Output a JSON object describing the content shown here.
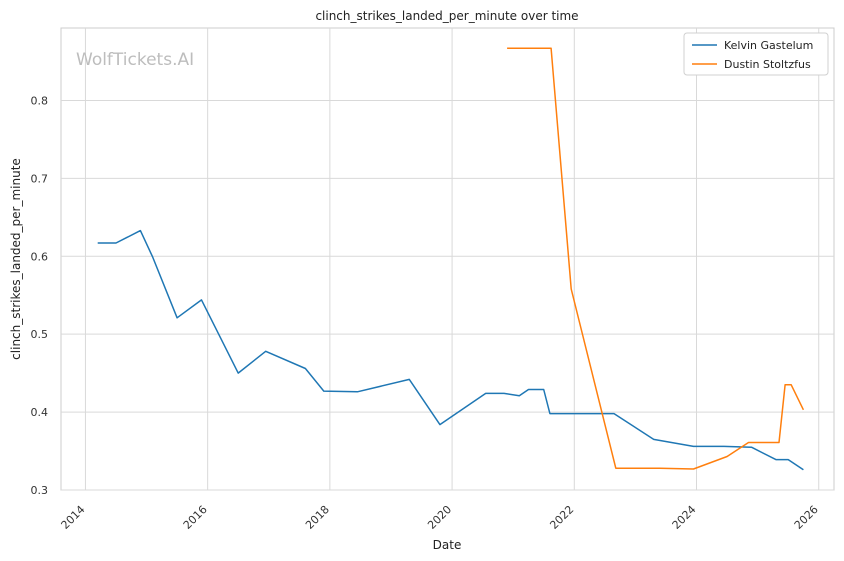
{
  "chart_data": {
    "type": "line",
    "title": "clinch_strikes_landed_per_minute over time",
    "xlabel": "Date",
    "ylabel": "clinch_strikes_landed_per_minute",
    "watermark": "WolfTickets.AI",
    "xlim": [
      2013.6,
      2026.25
    ],
    "ylim": [
      0.3,
      0.893
    ],
    "x_ticks": [
      2014,
      2016,
      2018,
      2020,
      2022,
      2024,
      2026
    ],
    "x_tick_labels": [
      "2014",
      "2016",
      "2018",
      "2020",
      "2022",
      "2024",
      "2026"
    ],
    "y_ticks": [
      0.3,
      0.4,
      0.5,
      0.6,
      0.7,
      0.8
    ],
    "y_tick_labels": [
      "0.3",
      "0.4",
      "0.5",
      "0.6",
      "0.7",
      "0.8"
    ],
    "grid": true,
    "legend_position": "top-right",
    "series": [
      {
        "name": "Kelvin Gastelum",
        "color": "#1f77b4",
        "x": [
          2014.2,
          2014.5,
          2014.9,
          2015.1,
          2015.5,
          2015.9,
          2016.5,
          2016.95,
          2017.6,
          2017.9,
          2018.45,
          2019.3,
          2019.8,
          2020.55,
          2020.85,
          2021.1,
          2021.25,
          2021.5,
          2021.6,
          2022.0,
          2022.65,
          2023.3,
          2023.95,
          2024.45,
          2024.9,
          2025.3,
          2025.5,
          2025.75
        ],
        "values": [
          0.617,
          0.617,
          0.633,
          0.599,
          0.521,
          0.544,
          0.45,
          0.478,
          0.456,
          0.427,
          0.426,
          0.442,
          0.384,
          0.424,
          0.424,
          0.421,
          0.429,
          0.429,
          0.398,
          0.398,
          0.398,
          0.365,
          0.356,
          0.356,
          0.355,
          0.339,
          0.339,
          0.326
        ]
      },
      {
        "name": "Dustin Stoltzfus",
        "color": "#ff7f0e",
        "x": [
          2020.9,
          2021.5,
          2021.62,
          2021.95,
          2022.68,
          2023.4,
          2023.95,
          2024.5,
          2024.85,
          2025.35,
          2025.45,
          2025.55,
          2025.75
        ],
        "values": [
          0.867,
          0.867,
          0.867,
          0.558,
          0.328,
          0.328,
          0.327,
          0.343,
          0.361,
          0.361,
          0.435,
          0.435,
          0.403
        ]
      }
    ]
  }
}
